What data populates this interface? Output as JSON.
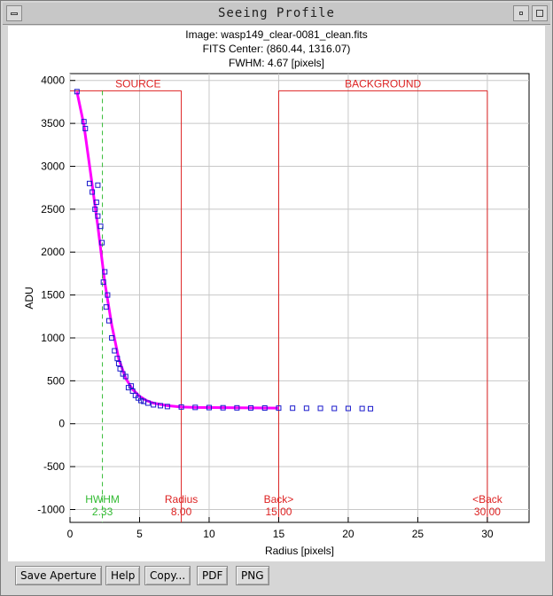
{
  "window": {
    "title": "Seeing Profile"
  },
  "chart_data": {
    "type": "scatter",
    "title_lines": [
      "Image: wasp149_clear-0081_clean.fits",
      "FITS Center: (860.44,  1316.07)",
      "FWHM: 4.67 [pixels]"
    ],
    "xlabel": "Radius [pixels]",
    "ylabel": "ADU",
    "xlim": [
      0,
      33
    ],
    "ylim": [
      -1150,
      4080
    ],
    "xticks": [
      0,
      5,
      10,
      15,
      20,
      25,
      30
    ],
    "yticks": [
      -1000,
      -500,
      0,
      500,
      1000,
      1500,
      2000,
      2500,
      3000,
      3500,
      4000
    ],
    "grid": true,
    "series": [
      {
        "kind": "points",
        "color": "#1a1acc",
        "x": [
          0.5,
          1.0,
          1.1,
          1.4,
          1.6,
          1.8,
          1.9,
          2.0,
          2.0,
          2.2,
          2.3,
          2.4,
          2.5,
          2.6,
          2.7,
          2.8,
          3.0,
          3.2,
          3.4,
          3.5,
          3.6,
          3.8,
          4.0,
          4.2,
          4.4,
          4.5,
          4.7,
          4.9,
          5.1,
          5.3,
          5.6,
          6.0,
          6.5,
          7.0,
          8.0,
          9.0,
          10.0,
          11.0,
          12.0,
          13.0,
          14.0,
          15.0,
          16.0,
          17.0,
          18.0,
          19.0,
          20.0,
          21.0,
          21.6
        ],
        "y": [
          3870,
          3520,
          3440,
          2800,
          2700,
          2500,
          2580,
          2420,
          2780,
          2300,
          2110,
          1650,
          1770,
          1360,
          1500,
          1200,
          1000,
          850,
          760,
          700,
          640,
          580,
          550,
          420,
          440,
          380,
          330,
          300,
          270,
          260,
          240,
          220,
          210,
          200,
          195,
          190,
          188,
          186,
          185,
          184,
          183,
          182,
          181,
          180,
          179,
          178,
          178,
          177,
          175
        ]
      },
      {
        "kind": "line",
        "name": "",
        "color": "#ff00ff",
        "x": [
          0.5,
          1.0,
          1.5,
          2.0,
          2.5,
          3.0,
          3.5,
          4.0,
          4.5,
          5.0,
          5.5,
          6.0,
          7.0,
          8.0,
          9.0,
          10.0,
          12.0,
          15.0
        ],
        "y": [
          3870,
          3480,
          2900,
          2300,
          1650,
          1150,
          760,
          530,
          400,
          320,
          270,
          240,
          210,
          195,
          190,
          188,
          185,
          182
        ]
      }
    ],
    "markers": [
      {
        "label": "HWHM",
        "value_text": "2.33",
        "x": 2.33,
        "color": "#33bb33",
        "style": "dashed"
      },
      {
        "label": "Radius",
        "value_text": "8.00",
        "x": 8.0,
        "color": "#dd2222",
        "style": "solid"
      },
      {
        "label": "Back>",
        "value_text": "15.00",
        "x": 15.0,
        "color": "#dd2222",
        "style": "solid"
      },
      {
        "label": "<Back",
        "value_text": "30.00",
        "x": 30.0,
        "color": "#dd2222",
        "style": "solid"
      }
    ],
    "regions": [
      {
        "label": "SOURCE",
        "x0": 0.0,
        "x1": 8.0,
        "color": "#dd2222"
      },
      {
        "label": "BACKGROUND",
        "x0": 15.0,
        "x1": 30.0,
        "color": "#dd2222"
      }
    ],
    "region_top": 3880
  },
  "buttons": [
    "Save Aperture",
    "Help",
    "Copy...",
    "PDF",
    "PNG"
  ]
}
